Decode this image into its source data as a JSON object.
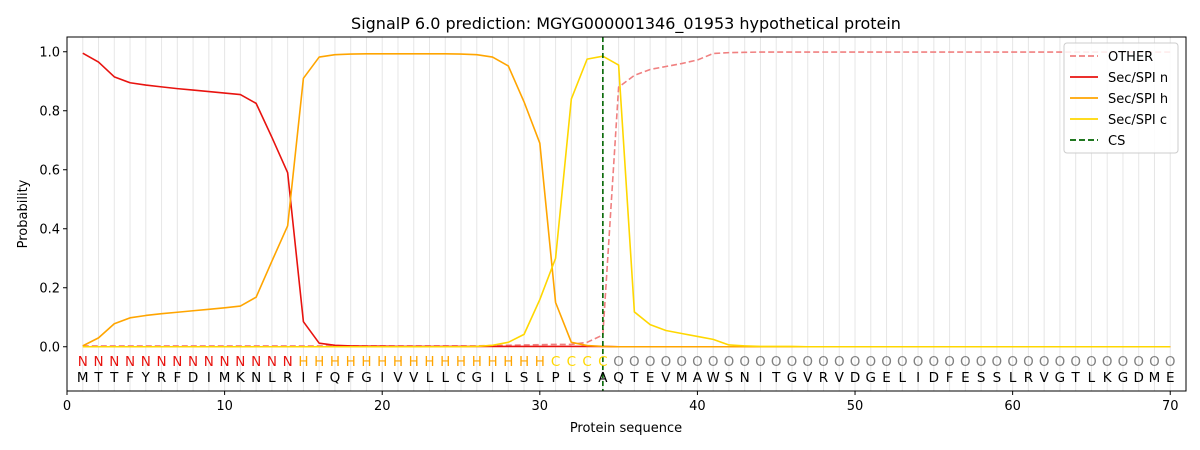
{
  "chart_data": {
    "type": "line",
    "title": "SignalP 6.0 prediction: MGYG000001346_01953 hypothetical protein",
    "xlabel": "Protein sequence",
    "ylabel": "Probability",
    "xlim": [
      0,
      71
    ],
    "ylim": [
      -0.15,
      1.05
    ],
    "x_ticks": [
      0,
      10,
      20,
      30,
      40,
      50,
      60,
      70
    ],
    "y_ticks": [
      0.0,
      0.2,
      0.4,
      0.6,
      0.8,
      1.0
    ],
    "vertical_grid": true,
    "legend_position": "top-right",
    "colors": {
      "OTHER": "#f08080",
      "Sec/SPI n": "#e8130f",
      "Sec/SPI h": "#ffa500",
      "Sec/SPI c": "#ffd700",
      "CS": "#006400",
      "label_O": "#808080"
    },
    "sequence": [
      "M",
      "T",
      "T",
      "F",
      "Y",
      "R",
      "F",
      "D",
      "I",
      "M",
      "K",
      "N",
      "L",
      "R",
      "I",
      "F",
      "Q",
      "F",
      "G",
      "I",
      "V",
      "V",
      "L",
      "L",
      "C",
      "G",
      "I",
      "L",
      "S",
      "L",
      "P",
      "L",
      "S",
      "A",
      "Q",
      "T",
      "E",
      "V",
      "M",
      "A",
      "W",
      "S",
      "N",
      "I",
      "T",
      "G",
      "V",
      "R",
      "V",
      "D",
      "G",
      "E",
      "L",
      "I",
      "D",
      "F",
      "E",
      "S",
      "S",
      "L",
      "R",
      "V",
      "G",
      "T",
      "L",
      "K",
      "G",
      "D",
      "M",
      "E"
    ],
    "region_labels": [
      "N",
      "N",
      "N",
      "N",
      "N",
      "N",
      "N",
      "N",
      "N",
      "N",
      "N",
      "N",
      "N",
      "N",
      "H",
      "H",
      "H",
      "H",
      "H",
      "H",
      "H",
      "H",
      "H",
      "H",
      "H",
      "H",
      "H",
      "H",
      "H",
      "H",
      "C",
      "C",
      "C",
      "C",
      "O",
      "O",
      "O",
      "O",
      "O",
      "O",
      "O",
      "O",
      "O",
      "O",
      "O",
      "O",
      "O",
      "O",
      "O",
      "O",
      "O",
      "O",
      "O",
      "O",
      "O",
      "O",
      "O",
      "O",
      "O",
      "O",
      "O",
      "O",
      "O",
      "O",
      "O",
      "O",
      "O",
      "O",
      "O",
      "O"
    ],
    "series": [
      {
        "name": "OTHER",
        "style": "dashed",
        "values": [
          0.003,
          0.003,
          0.003,
          0.003,
          0.003,
          0.003,
          0.003,
          0.003,
          0.003,
          0.003,
          0.003,
          0.003,
          0.003,
          0.003,
          0.003,
          0.003,
          0.003,
          0.003,
          0.003,
          0.003,
          0.003,
          0.003,
          0.003,
          0.003,
          0.003,
          0.003,
          0.004,
          0.005,
          0.006,
          0.007,
          0.008,
          0.008,
          0.015,
          0.04,
          0.88,
          0.92,
          0.94,
          0.95,
          0.96,
          0.972,
          0.994,
          0.997,
          0.998,
          0.999,
          0.999,
          0.999,
          0.999,
          0.999,
          0.999,
          0.999,
          0.999,
          0.999,
          0.999,
          0.999,
          0.999,
          0.999,
          0.999,
          0.999,
          0.999,
          0.999,
          0.999,
          0.999,
          0.999,
          0.999,
          0.999,
          0.999,
          0.999,
          0.999,
          0.999,
          0.999
        ]
      },
      {
        "name": "Sec/SPI n",
        "style": "solid",
        "values": [
          0.995,
          0.965,
          0.915,
          0.895,
          0.887,
          0.881,
          0.875,
          0.87,
          0.865,
          0.86,
          0.855,
          0.825,
          0.71,
          0.59,
          0.085,
          0.012,
          0.005,
          0.003,
          0.002,
          0.002,
          0.001,
          0.001,
          0.001,
          0.001,
          0.001,
          0.001,
          0.001,
          0.001,
          0.001,
          0.001,
          0.001,
          0.001,
          0.001,
          0.001,
          0.0,
          0.0,
          0.0,
          0.0,
          0.0,
          0.0,
          0.0,
          0.0,
          0.0,
          0.0,
          0.0,
          0.0,
          0.0,
          0.0,
          0.0,
          0.0,
          0.0,
          0.0,
          0.0,
          0.0,
          0.0,
          0.0,
          0.0,
          0.0,
          0.0,
          0.0,
          0.0,
          0.0,
          0.0,
          0.0,
          0.0,
          0.0,
          0.0,
          0.0,
          0.0,
          0.0
        ]
      },
      {
        "name": "Sec/SPI h",
        "style": "solid",
        "values": [
          0.003,
          0.03,
          0.078,
          0.098,
          0.106,
          0.112,
          0.117,
          0.122,
          0.127,
          0.132,
          0.138,
          0.168,
          0.29,
          0.41,
          0.91,
          0.982,
          0.99,
          0.992,
          0.993,
          0.993,
          0.993,
          0.993,
          0.993,
          0.993,
          0.992,
          0.99,
          0.982,
          0.952,
          0.83,
          0.69,
          0.15,
          0.015,
          0.004,
          0.001,
          0.0,
          0.0,
          0.0,
          0.0,
          0.0,
          0.0,
          0.0,
          0.0,
          0.0,
          0.0,
          0.0,
          0.0,
          0.0,
          0.0,
          0.0,
          0.0,
          0.0,
          0.0,
          0.0,
          0.0,
          0.0,
          0.0,
          0.0,
          0.0,
          0.0,
          0.0,
          0.0,
          0.0,
          0.0,
          0.0,
          0.0,
          0.0,
          0.0,
          0.0,
          0.0,
          0.0
        ]
      },
      {
        "name": "Sec/SPI c",
        "style": "solid",
        "values": [
          0.0,
          0.0,
          0.0,
          0.0,
          0.0,
          0.0,
          0.0,
          0.0,
          0.0,
          0.0,
          0.0,
          0.0,
          0.0,
          0.0,
          0.0,
          0.0,
          0.0,
          0.0,
          0.0,
          0.0,
          0.0,
          0.0,
          0.0,
          0.0,
          0.0,
          0.001,
          0.005,
          0.015,
          0.042,
          0.16,
          0.3,
          0.84,
          0.975,
          0.985,
          0.955,
          0.118,
          0.075,
          0.055,
          0.045,
          0.035,
          0.025,
          0.006,
          0.003,
          0.001,
          0.001,
          0.001,
          0.0,
          0.0,
          0.0,
          0.0,
          0.0,
          0.0,
          0.0,
          0.0,
          0.0,
          0.0,
          0.0,
          0.0,
          0.0,
          0.0,
          0.0,
          0.0,
          0.0,
          0.0,
          0.0,
          0.0,
          0.0,
          0.0,
          0.0,
          0.0
        ]
      }
    ],
    "cleavage_site": {
      "name": "CS",
      "x": 34,
      "style": "dashed"
    },
    "legend": [
      "OTHER",
      "Sec/SPI n",
      "Sec/SPI h",
      "Sec/SPI c",
      "CS"
    ]
  }
}
